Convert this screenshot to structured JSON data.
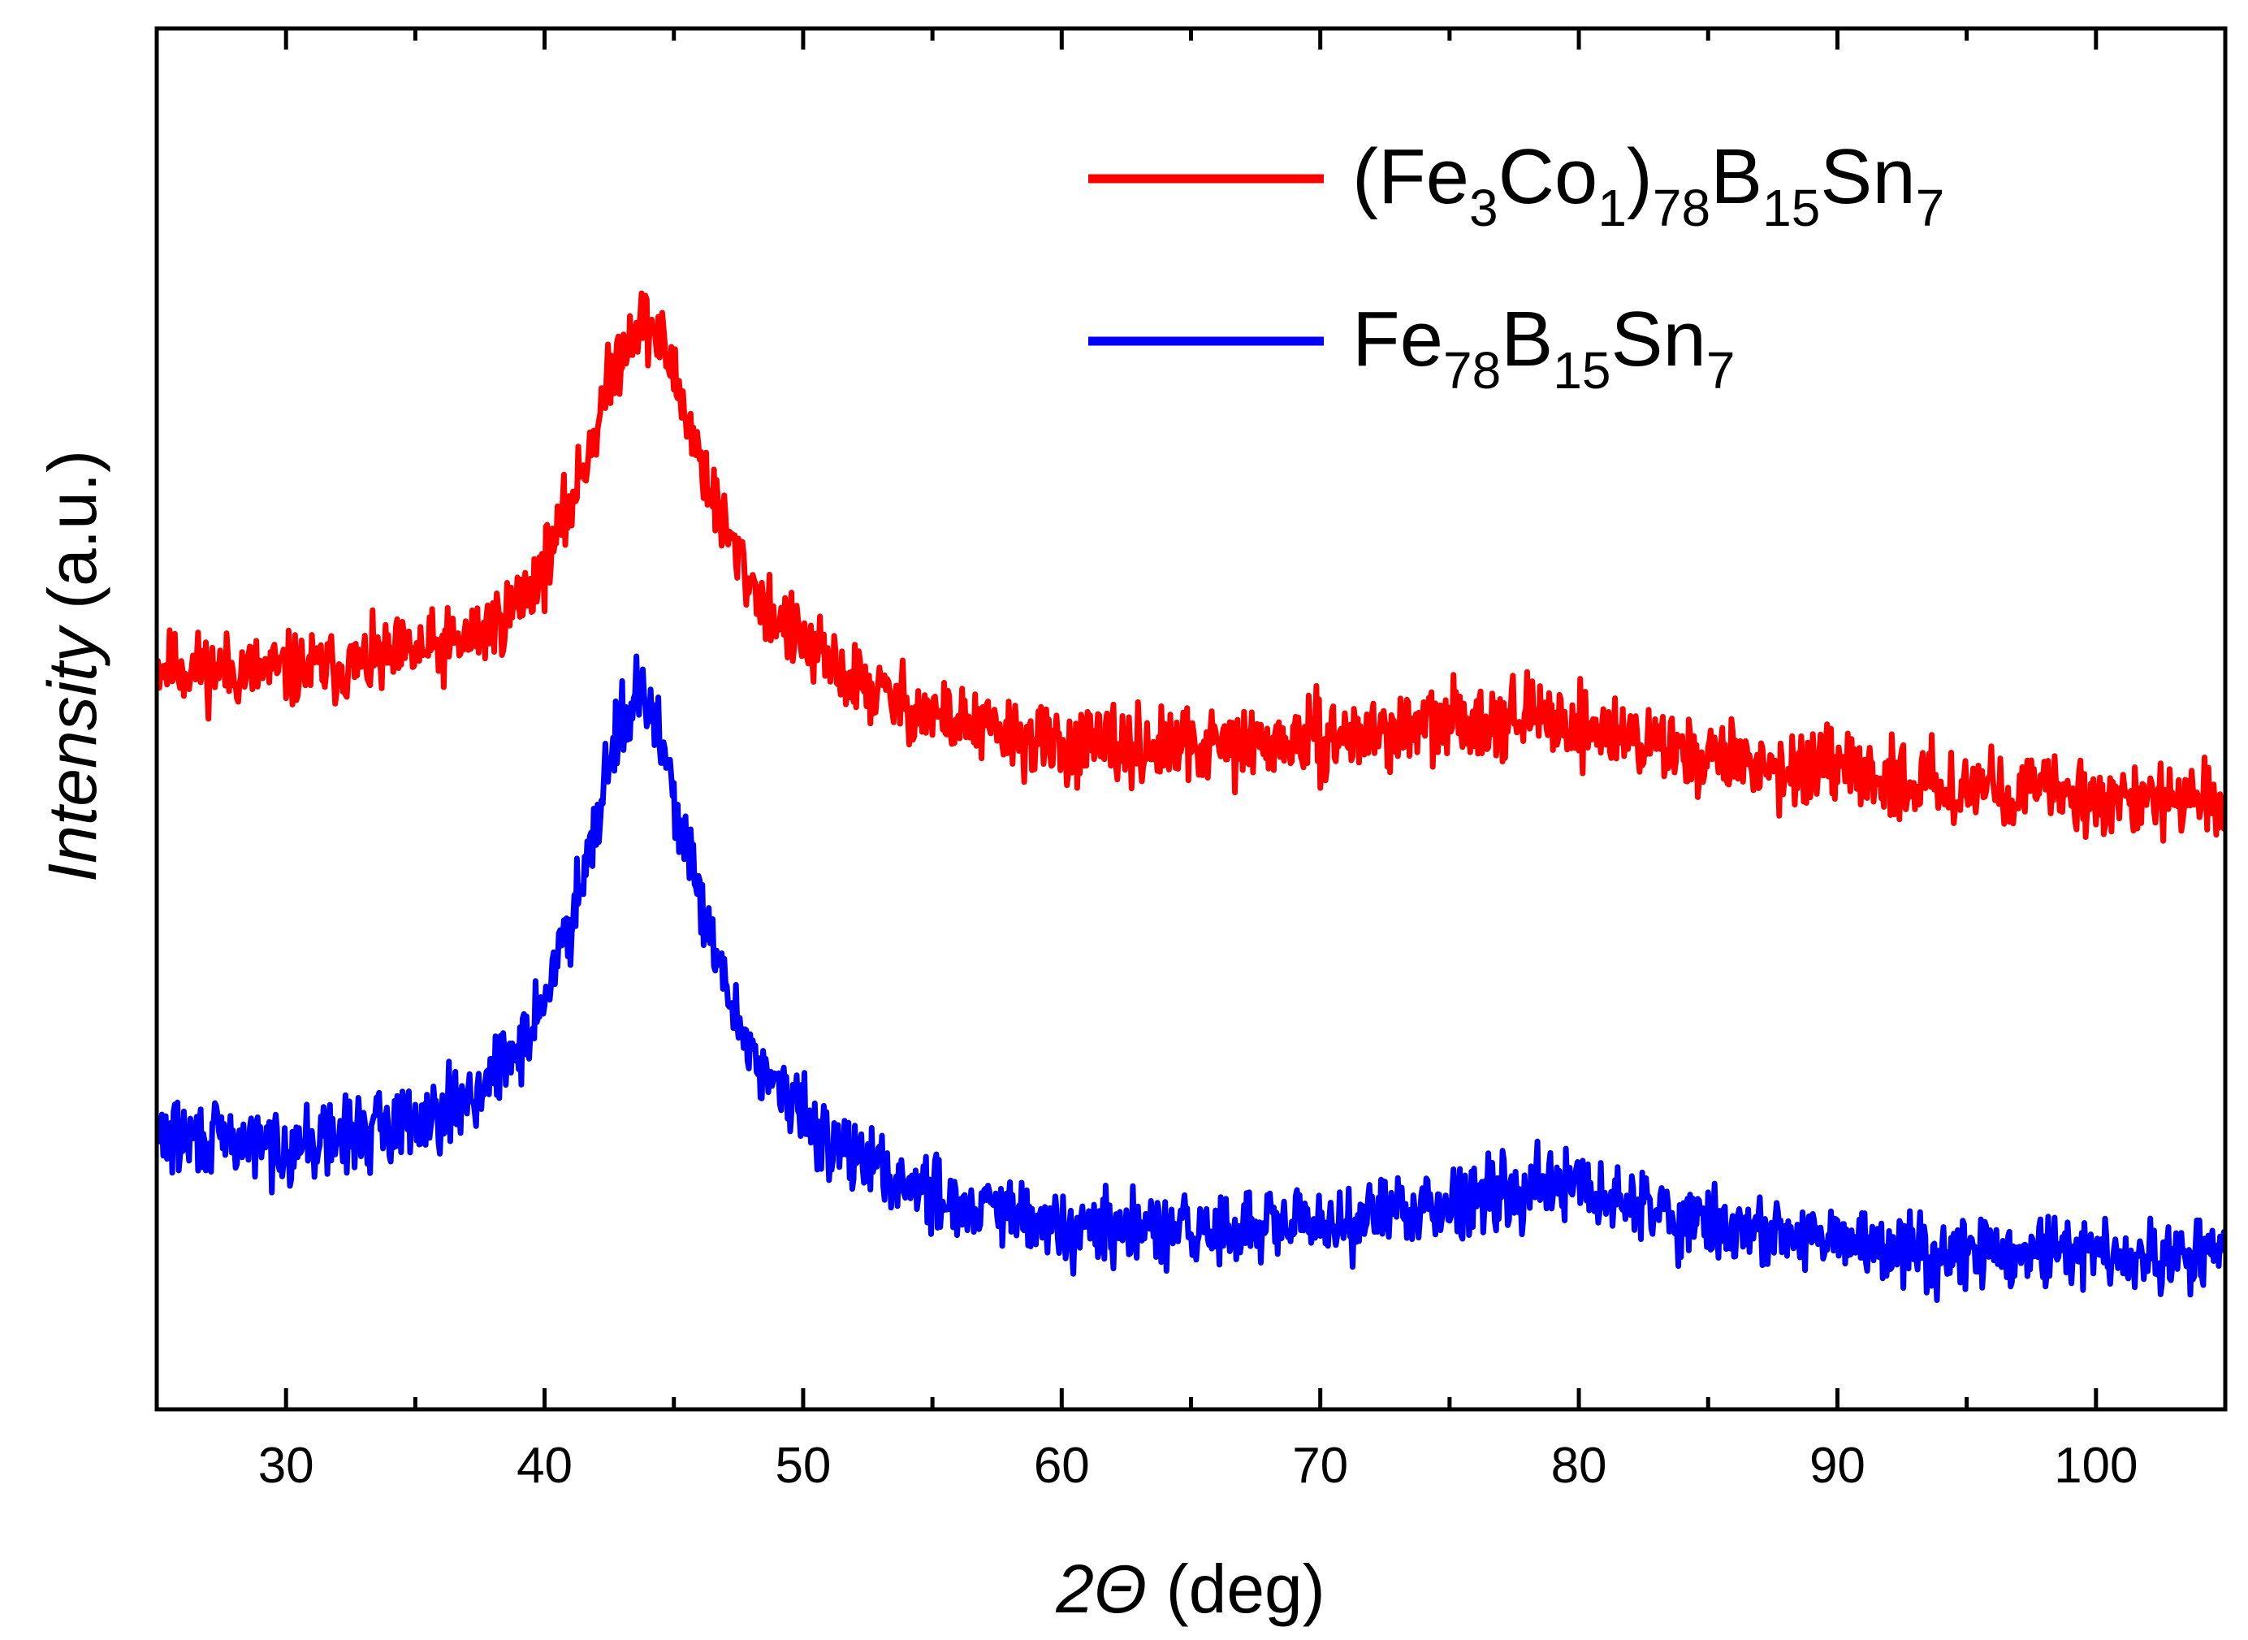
{
  "chart_data": {
    "type": "line",
    "title": "",
    "xlabel": {
      "prefix": "2",
      "symbol": "Θ",
      "suffix": " (deg)"
    },
    "ylabel": {
      "italic": "Intensity",
      "suffix": " (a.u.)"
    },
    "xlim": [
      25,
      105
    ],
    "ylim": [
      0,
      1
    ],
    "x_ticks": [
      30,
      40,
      50,
      60,
      70,
      80,
      90,
      100
    ],
    "x_tick_labels": [
      "30",
      "40",
      "50",
      "60",
      "70",
      "80",
      "90",
      "100"
    ],
    "y_ticks_labeled": false,
    "grid": false,
    "legend_position": "top-right",
    "series": [
      {
        "name": "(Fe3Co1)78B15Sn7",
        "legend_parts": [
          {
            "t": "(Fe",
            "sub": false
          },
          {
            "t": "3",
            "sub": true
          },
          {
            "t": "Co",
            "sub": false
          },
          {
            "t": "1",
            "sub": true
          },
          {
            "t": ")",
            "sub": false
          },
          {
            "t": "78",
            "sub": true
          },
          {
            "t": "B",
            "sub": false
          },
          {
            "t": "15",
            "sub": true
          },
          {
            "t": "Sn",
            "sub": false
          },
          {
            "t": "7",
            "sub": true
          }
        ],
        "color": "#ff0000",
        "baseline": 0.465,
        "peaks": [
          {
            "center": 43.8,
            "height": 0.29,
            "width": 3.1
          },
          {
            "center": 78.0,
            "height": 0.042,
            "width": 6.5
          }
        ],
        "background": [
          [
            25,
            0.065
          ],
          [
            30,
            0.055
          ],
          [
            35,
            0.05
          ],
          [
            40,
            0.03
          ],
          [
            50,
            0.03
          ],
          [
            60,
            0.0
          ],
          [
            70,
            0.0
          ],
          [
            80,
            -0.01
          ],
          [
            90,
            -0.015
          ],
          [
            105,
            -0.03
          ]
        ],
        "noise": 0.018,
        "seed": 11
      },
      {
        "name": "Fe78B15Sn7",
        "legend_parts": [
          {
            "t": "Fe",
            "sub": false
          },
          {
            "t": "78",
            "sub": true
          },
          {
            "t": "B",
            "sub": false
          },
          {
            "t": "15",
            "sub": true
          },
          {
            "t": "Sn",
            "sub": false
          },
          {
            "t": "7",
            "sub": true
          }
        ],
        "color": "#0000ff",
        "baseline": 0.115,
        "peaks": [
          {
            "center": 43.6,
            "height": 0.36,
            "width": 2.9
          },
          {
            "center": 78.5,
            "height": 0.045,
            "width": 6.0
          }
        ],
        "background": [
          [
            25,
            0.075
          ],
          [
            30,
            0.06
          ],
          [
            35,
            0.06
          ],
          [
            40,
            0.04
          ],
          [
            50,
            0.035
          ],
          [
            60,
            0.0
          ],
          [
            70,
            0.0
          ],
          [
            80,
            0.0
          ],
          [
            90,
            -0.005
          ],
          [
            105,
            -0.01
          ]
        ],
        "noise": 0.018,
        "seed": 29
      }
    ]
  }
}
